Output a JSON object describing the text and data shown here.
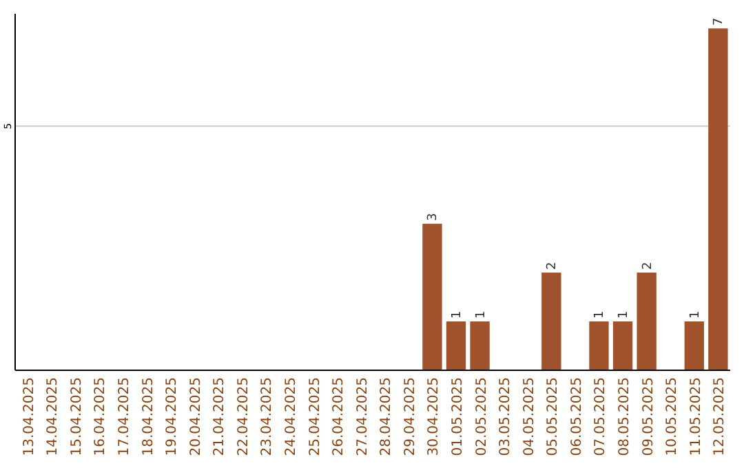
{
  "chart_data": {
    "type": "bar",
    "categories": [
      "13.04.2025",
      "14.04.2025",
      "15.04.2025",
      "16.04.2025",
      "17.04.2025",
      "18.04.2025",
      "19.04.2025",
      "20.04.2025",
      "21.04.2025",
      "22.04.2025",
      "23.04.2025",
      "24.04.2025",
      "25.04.2025",
      "26.04.2025",
      "27.04.2025",
      "28.04.2025",
      "29.04.2025",
      "30.04.2025",
      "01.05.2025",
      "02.05.2025",
      "03.05.2025",
      "04.05.2025",
      "05.05.2025",
      "06.05.2025",
      "07.05.2025",
      "08.05.2025",
      "09.05.2025",
      "10.05.2025",
      "11.05.2025",
      "12.05.2025"
    ],
    "values": [
      null,
      null,
      null,
      null,
      null,
      null,
      null,
      null,
      null,
      null,
      null,
      null,
      null,
      null,
      null,
      null,
      null,
      3,
      1,
      1,
      null,
      null,
      2,
      null,
      1,
      1,
      2,
      null,
      1,
      7
    ],
    "value_labels": [
      null,
      null,
      null,
      null,
      null,
      null,
      null,
      null,
      null,
      null,
      null,
      null,
      null,
      null,
      null,
      null,
      null,
      "3",
      "1",
      "1",
      null,
      null,
      "2",
      null,
      "1",
      "1",
      "2",
      null,
      "1",
      "7"
    ],
    "color": "#a0522d",
    "ylim": [
      0,
      7.3
    ],
    "yticks": [
      5
    ],
    "grid": "y"
  }
}
